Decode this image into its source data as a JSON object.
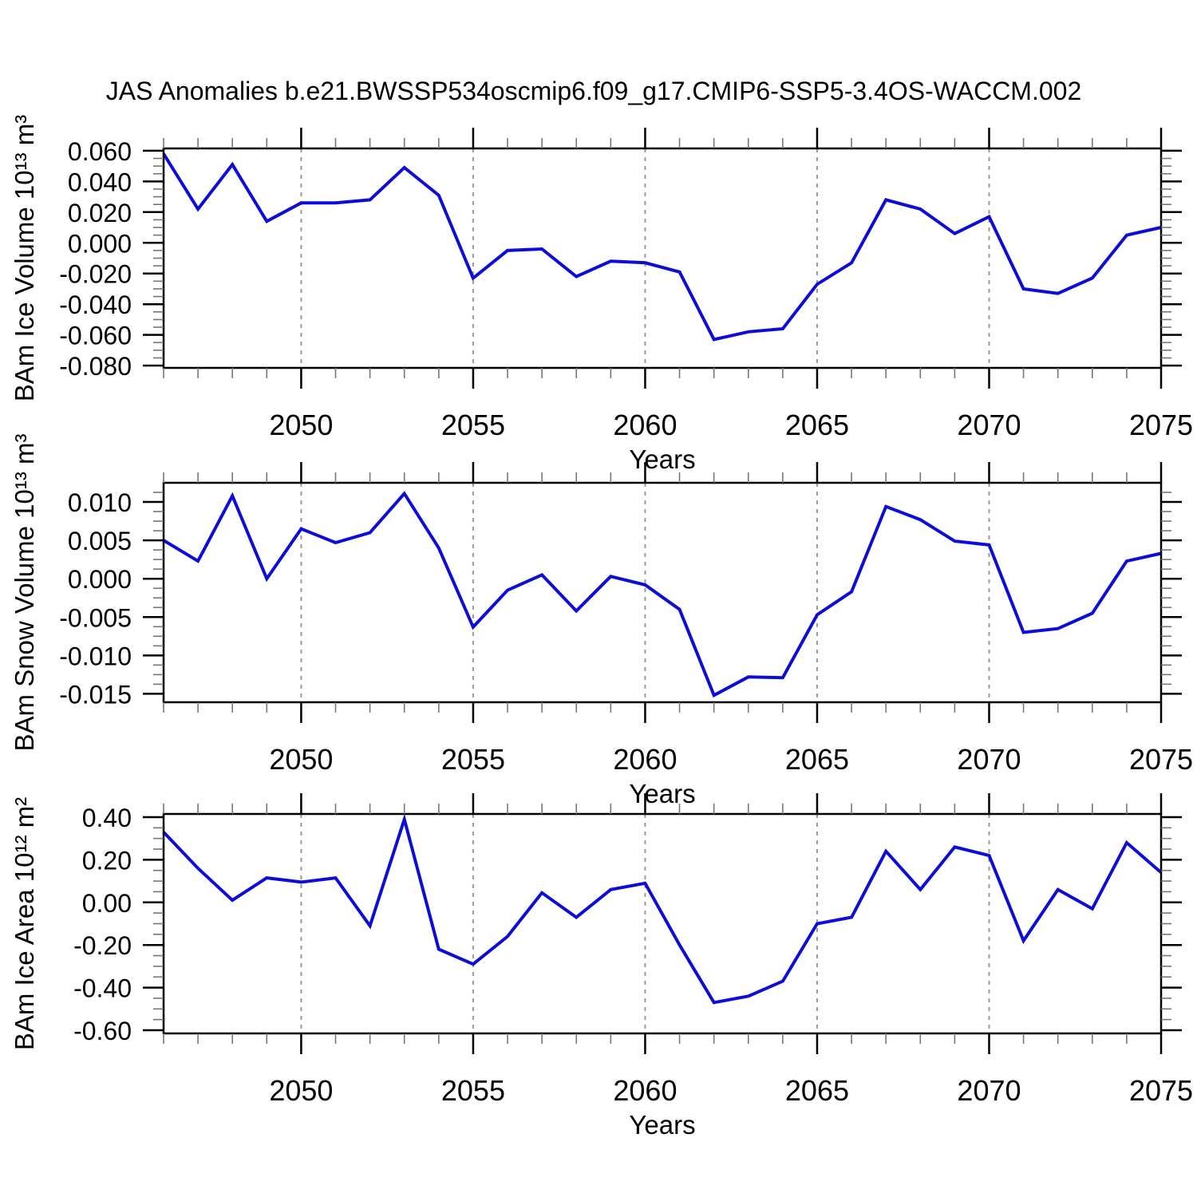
{
  "title": "JAS Anomalies b.e21.BWSSP534oscmip6.f09_g17.CMIP6-SSP5-3.4OS-WACCM.002",
  "x_axis": {
    "label": "Years",
    "min": 2046,
    "max": 2075,
    "major_ticks": [
      2050,
      2055,
      2060,
      2065,
      2070,
      2075
    ],
    "gridline_ticks": [
      2050,
      2055,
      2060,
      2065,
      2070
    ],
    "minor_step": 1
  },
  "style": {
    "line_color": "#0d0dd9",
    "axis_color": "#000000",
    "grid_color": "#9a9a9a",
    "minor_tick_color": "#777777",
    "background": "#ffffff"
  },
  "chart_data": [
    {
      "type": "line",
      "name": "ice-volume",
      "ylabel": "BAm Ice Volume 10¹³ m³",
      "xlabel": "Years",
      "x": [
        2046,
        2047,
        2048,
        2049,
        2050,
        2051,
        2052,
        2053,
        2054,
        2055,
        2056,
        2057,
        2058,
        2059,
        2060,
        2061,
        2062,
        2063,
        2064,
        2065,
        2066,
        2067,
        2068,
        2069,
        2070,
        2071,
        2072,
        2073,
        2074,
        2075
      ],
      "values": [
        0.058,
        0.022,
        0.051,
        0.014,
        0.026,
        0.026,
        0.028,
        0.049,
        0.031,
        -0.023,
        -0.005,
        -0.004,
        -0.022,
        -0.012,
        -0.013,
        -0.019,
        -0.063,
        -0.058,
        -0.056,
        -0.027,
        -0.013,
        0.028,
        0.022,
        0.006,
        0.017,
        -0.03,
        -0.033,
        -0.023,
        0.005,
        0.01
      ],
      "ylim": [
        -0.0815,
        0.0615
      ],
      "ytick_values": [
        -0.08,
        -0.06,
        -0.04,
        -0.02,
        0.0,
        0.02,
        0.04,
        0.06
      ],
      "ytick_labels": [
        "-0.080",
        "-0.060",
        "-0.040",
        "-0.020",
        "0.000",
        "0.020",
        "0.040",
        "0.060"
      ],
      "y_minor_step": 0.005
    },
    {
      "type": "line",
      "name": "snow-volume",
      "ylabel": "BAm Snow Volume 10¹³ m³",
      "xlabel": "Years",
      "x": [
        2046,
        2047,
        2048,
        2049,
        2050,
        2051,
        2052,
        2053,
        2054,
        2055,
        2056,
        2057,
        2058,
        2059,
        2060,
        2061,
        2062,
        2063,
        2064,
        2065,
        2066,
        2067,
        2068,
        2069,
        2070,
        2071,
        2072,
        2073,
        2074,
        2075
      ],
      "values": [
        0.005,
        0.0023,
        0.0108,
        0.0,
        0.0065,
        0.0047,
        0.006,
        0.0111,
        0.004,
        -0.0063,
        -0.0015,
        0.0005,
        -0.0042,
        0.0003,
        -0.0008,
        -0.004,
        -0.0152,
        -0.0128,
        -0.0129,
        -0.0047,
        -0.0017,
        0.0094,
        0.0077,
        0.0049,
        0.0044,
        -0.007,
        -0.0065,
        -0.0045,
        0.0023,
        0.0033
      ],
      "ylim": [
        -0.0161,
        0.0125
      ],
      "ytick_values": [
        -0.015,
        -0.01,
        -0.005,
        0.0,
        0.005,
        0.01
      ],
      "ytick_labels": [
        "-0.015",
        "-0.010",
        "-0.005",
        "0.000",
        "0.005",
        "0.010"
      ],
      "y_minor_step": 0.00125
    },
    {
      "type": "line",
      "name": "ice-area",
      "ylabel": "BAm Ice Area 10¹² m²",
      "xlabel": "Years",
      "x": [
        2046,
        2047,
        2048,
        2049,
        2050,
        2051,
        2052,
        2053,
        2054,
        2055,
        2056,
        2057,
        2058,
        2059,
        2060,
        2061,
        2062,
        2063,
        2064,
        2065,
        2066,
        2067,
        2068,
        2069,
        2070,
        2071,
        2072,
        2073,
        2074,
        2075
      ],
      "values": [
        0.33,
        0.16,
        0.01,
        0.115,
        0.095,
        0.115,
        -0.11,
        0.39,
        -0.22,
        -0.29,
        -0.16,
        0.045,
        -0.07,
        0.06,
        0.09,
        -0.2,
        -0.47,
        -0.44,
        -0.37,
        -0.1,
        -0.07,
        0.24,
        0.06,
        0.26,
        0.22,
        -0.18,
        0.06,
        -0.03,
        0.28,
        0.14
      ],
      "ylim": [
        -0.615,
        0.415
      ],
      "ytick_values": [
        -0.6,
        -0.4,
        -0.2,
        0.0,
        0.2,
        0.4
      ],
      "ytick_labels": [
        "-0.60",
        "-0.40",
        "-0.20",
        "0.00",
        "0.20",
        "0.40"
      ],
      "y_minor_step": 0.05
    }
  ]
}
